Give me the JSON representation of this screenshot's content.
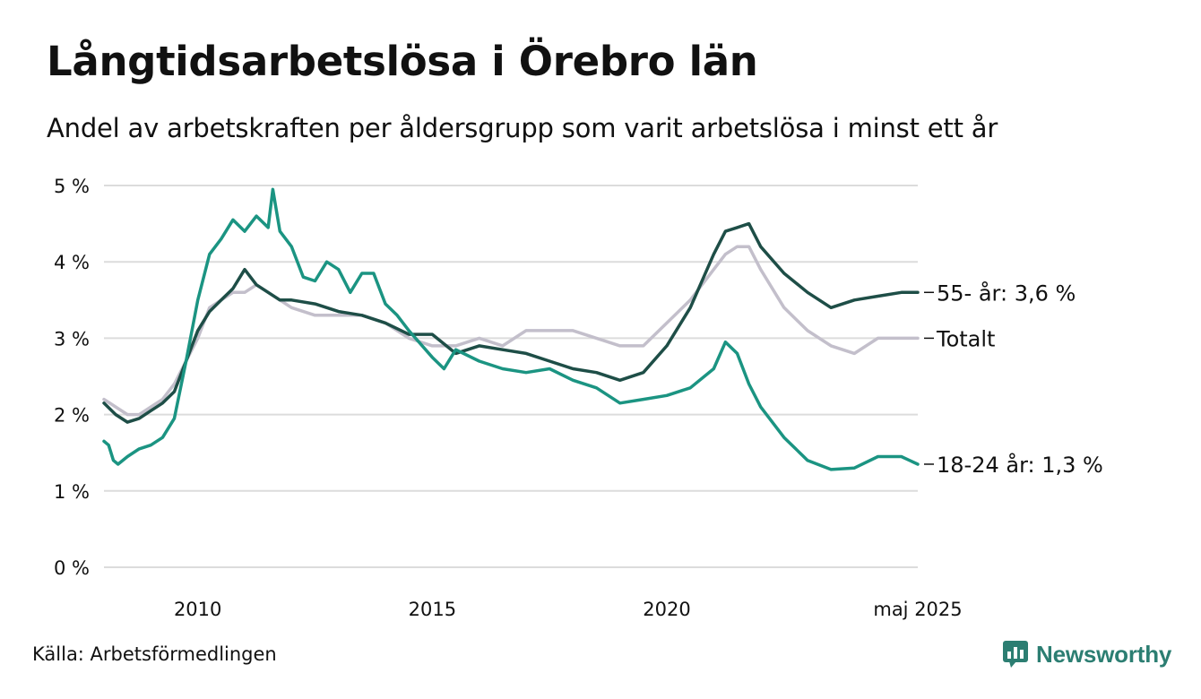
{
  "title": "Långtidsarbetslösa i Örebro län",
  "subtitle": "Andel av arbetskraften per åldersgrupp som varit arbetslösa i minst ett år",
  "source": "Källa: Arbetsförmedlingen",
  "brand": {
    "name": "Newsworthy",
    "color": "#2c7e72",
    "icon": "bar-chart-speech-bubble-icon"
  },
  "chart_data": {
    "type": "line",
    "title": "Långtidsarbetslösa i Örebro län",
    "subtitle": "Andel av arbetskraften per åldersgrupp som varit arbetslösa i minst ett år",
    "ylim": [
      0,
      5
    ],
    "xlim": [
      2008.0,
      2025.35
    ],
    "y_ticks": [
      0,
      1,
      2,
      3,
      4,
      5
    ],
    "y_tick_labels": [
      "0 %",
      "1 %",
      "2 %",
      "3 %",
      "4 %",
      "5 %"
    ],
    "x_ticks": [
      2010,
      2015,
      2020,
      2025.35
    ],
    "x_tick_labels": [
      "2010",
      "2015",
      "2020",
      "maj 2025"
    ],
    "grid": true,
    "legend": "direct-labels-right",
    "series": [
      {
        "name": "Totalt",
        "end_label": "Totalt",
        "color": "#c3bfcb",
        "x": [
          2008.0,
          2008.25,
          2008.5,
          2008.75,
          2009.0,
          2009.25,
          2009.5,
          2009.75,
          2010.0,
          2010.25,
          2010.5,
          2010.75,
          2011.0,
          2011.25,
          2011.5,
          2011.75,
          2012.0,
          2012.5,
          2013.0,
          2013.5,
          2014.0,
          2014.5,
          2015.0,
          2015.5,
          2016.0,
          2016.5,
          2017.0,
          2017.5,
          2018.0,
          2018.5,
          2019.0,
          2019.5,
          2020.0,
          2020.5,
          2021.0,
          2021.25,
          2021.5,
          2021.75,
          2022.0,
          2022.5,
          2023.0,
          2023.5,
          2024.0,
          2024.5,
          2025.0,
          2025.35
        ],
        "values": [
          2.2,
          2.1,
          2.0,
          2.0,
          2.1,
          2.2,
          2.4,
          2.7,
          3.0,
          3.4,
          3.5,
          3.6,
          3.6,
          3.7,
          3.6,
          3.5,
          3.4,
          3.3,
          3.3,
          3.3,
          3.2,
          3.0,
          2.9,
          2.9,
          3.0,
          2.9,
          3.1,
          3.1,
          3.1,
          3.0,
          2.9,
          2.9,
          3.2,
          3.5,
          3.9,
          4.1,
          4.2,
          4.2,
          3.9,
          3.4,
          3.1,
          2.9,
          2.8,
          3.0,
          3.0,
          3.0
        ]
      },
      {
        "name": "55-",
        "end_label": "55- år: 3,6 %",
        "color": "#1e4e47",
        "x": [
          2008.0,
          2008.25,
          2008.5,
          2008.75,
          2009.0,
          2009.25,
          2009.5,
          2009.75,
          2010.0,
          2010.25,
          2010.5,
          2010.75,
          2011.0,
          2011.25,
          2011.5,
          2011.75,
          2012.0,
          2012.5,
          2013.0,
          2013.5,
          2014.0,
          2014.5,
          2015.0,
          2015.5,
          2016.0,
          2016.5,
          2017.0,
          2017.5,
          2018.0,
          2018.5,
          2019.0,
          2019.5,
          2020.0,
          2020.5,
          2021.0,
          2021.25,
          2021.5,
          2021.75,
          2022.0,
          2022.5,
          2023.0,
          2023.5,
          2024.0,
          2024.5,
          2025.0,
          2025.35
        ],
        "values": [
          2.15,
          2.0,
          1.9,
          1.95,
          2.05,
          2.15,
          2.3,
          2.7,
          3.1,
          3.35,
          3.5,
          3.65,
          3.9,
          3.7,
          3.6,
          3.5,
          3.5,
          3.45,
          3.35,
          3.3,
          3.2,
          3.05,
          3.05,
          2.8,
          2.9,
          2.85,
          2.8,
          2.7,
          2.6,
          2.55,
          2.45,
          2.55,
          2.9,
          3.4,
          4.1,
          4.4,
          4.45,
          4.5,
          4.2,
          3.85,
          3.6,
          3.4,
          3.5,
          3.55,
          3.6,
          3.6
        ]
      },
      {
        "name": "18-24",
        "end_label": "18-24 år: 1,3 %",
        "color": "#1b9482",
        "x": [
          2008.0,
          2008.1,
          2008.2,
          2008.3,
          2008.5,
          2008.75,
          2009.0,
          2009.25,
          2009.5,
          2009.75,
          2010.0,
          2010.25,
          2010.5,
          2010.75,
          2011.0,
          2011.25,
          2011.5,
          2011.6,
          2011.75,
          2012.0,
          2012.25,
          2012.5,
          2012.75,
          2013.0,
          2013.25,
          2013.5,
          2013.75,
          2014.0,
          2014.25,
          2014.5,
          2015.0,
          2015.25,
          2015.5,
          2016.0,
          2016.5,
          2017.0,
          2017.5,
          2018.0,
          2018.5,
          2019.0,
          2019.5,
          2020.0,
          2020.5,
          2021.0,
          2021.25,
          2021.5,
          2021.75,
          2022.0,
          2022.5,
          2023.0,
          2023.5,
          2024.0,
          2024.5,
          2025.0,
          2025.35
        ],
        "values": [
          1.65,
          1.6,
          1.4,
          1.35,
          1.45,
          1.55,
          1.6,
          1.7,
          1.95,
          2.7,
          3.5,
          4.1,
          4.3,
          4.55,
          4.4,
          4.6,
          4.45,
          4.95,
          4.4,
          4.2,
          3.8,
          3.75,
          4.0,
          3.9,
          3.6,
          3.85,
          3.85,
          3.45,
          3.3,
          3.1,
          2.75,
          2.6,
          2.85,
          2.7,
          2.6,
          2.55,
          2.6,
          2.45,
          2.35,
          2.15,
          2.2,
          2.25,
          2.35,
          2.6,
          2.95,
          2.8,
          2.4,
          2.1,
          1.7,
          1.4,
          1.28,
          1.3,
          1.45,
          1.45,
          1.35
        ]
      }
    ]
  }
}
